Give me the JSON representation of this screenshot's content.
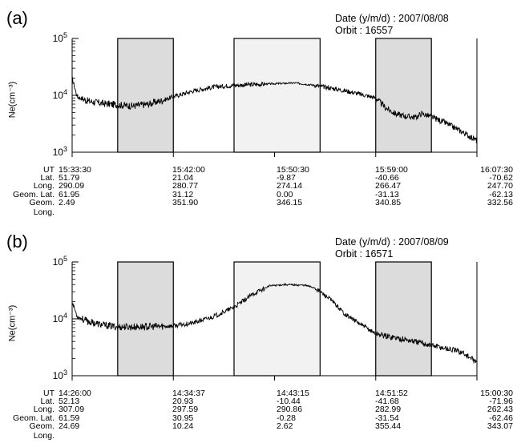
{
  "chart_data": [
    {
      "type": "line",
      "panel_label": "(a)",
      "date_label": "Date (y/m/d) : 2007/08/08",
      "orbit_label": "Orbit : 16557",
      "ylabel": "Ne(cm⁻³)",
      "yscale": "log",
      "ylim": [
        1000,
        100000
      ],
      "yticks": [
        {
          "base": "10",
          "exp": "3"
        },
        {
          "base": "10",
          "exp": "4"
        },
        {
          "base": "10",
          "exp": "5"
        }
      ],
      "x_ticks": [
        "15:33:30",
        "15:42:00",
        "15:50:30",
        "15:59:00",
        "16:07:30"
      ],
      "xlim": [
        0,
        4
      ],
      "shaded_regions": [
        {
          "x0": 0.45,
          "x1": 1.0,
          "shade": "#dcdcdc"
        },
        {
          "x0": 1.6,
          "x1": 2.45,
          "shade": "#f2f2f2"
        },
        {
          "x0": 3.0,
          "x1": 3.55,
          "shade": "#dcdcdc"
        }
      ],
      "series": [
        {
          "values": [
            [
              0.0,
              20000
            ],
            [
              0.05,
              9500
            ],
            [
              0.15,
              8000
            ],
            [
              0.3,
              7200
            ],
            [
              0.45,
              6800
            ],
            [
              0.6,
              6500
            ],
            [
              0.75,
              7000
            ],
            [
              0.9,
              8200
            ],
            [
              1.0,
              9500
            ],
            [
              1.2,
              12000
            ],
            [
              1.4,
              14000
            ],
            [
              1.6,
              15000
            ],
            [
              1.8,
              15500
            ],
            [
              2.0,
              16000
            ],
            [
              2.2,
              16500
            ],
            [
              2.4,
              15000
            ],
            [
              2.6,
              13000
            ],
            [
              2.8,
              11000
            ],
            [
              3.0,
              9000
            ],
            [
              3.1,
              6000
            ],
            [
              3.2,
              4700
            ],
            [
              3.3,
              4300
            ],
            [
              3.4,
              4100
            ],
            [
              3.45,
              4800
            ],
            [
              3.55,
              4200
            ],
            [
              3.7,
              3200
            ],
            [
              3.85,
              2300
            ],
            [
              4.0,
              1600
            ]
          ]
        }
      ],
      "info_rows": [
        {
          "label": "UT",
          "values": [
            "15:33:30",
            "15:42:00",
            "15:50:30",
            "15:59:00",
            "16:07:30"
          ]
        },
        {
          "label": "Lat.",
          "values": [
            "51.79",
            "21.04",
            "-9.87",
            "-40.66",
            "-70.62"
          ]
        },
        {
          "label": "Long.",
          "values": [
            "290.09",
            "280.77",
            "274.14",
            "266.47",
            "247.70"
          ]
        },
        {
          "label": "Geom. Lat.",
          "values": [
            "61.95",
            "31.12",
            "0.00",
            "-31.13",
            "-62.13"
          ]
        },
        {
          "label": "Geom. Long.",
          "values": [
            "2.49",
            "351.90",
            "346.15",
            "340.85",
            "332.56"
          ]
        }
      ]
    },
    {
      "type": "line",
      "panel_label": "(b)",
      "date_label": "Date (y/m/d) : 2007/08/09",
      "orbit_label": "Orbit : 16571",
      "ylabel": "Ne(cm⁻³)",
      "yscale": "log",
      "ylim": [
        1000,
        100000
      ],
      "yticks": [
        {
          "base": "10",
          "exp": "3"
        },
        {
          "base": "10",
          "exp": "4"
        },
        {
          "base": "10",
          "exp": "5"
        }
      ],
      "x_ticks": [
        "14:26:00",
        "14:34:37",
        "14:43:15",
        "14:51:52",
        "15:00:30"
      ],
      "xlim": [
        0,
        4
      ],
      "shaded_regions": [
        {
          "x0": 0.45,
          "x1": 1.0,
          "shade": "#dcdcdc"
        },
        {
          "x0": 1.6,
          "x1": 2.45,
          "shade": "#f2f2f2"
        },
        {
          "x0": 3.0,
          "x1": 3.55,
          "shade": "#dcdcdc"
        }
      ],
      "series": [
        {
          "values": [
            [
              0.0,
              20000
            ],
            [
              0.05,
              11000
            ],
            [
              0.15,
              9000
            ],
            [
              0.3,
              7800
            ],
            [
              0.45,
              7200
            ],
            [
              0.6,
              7200
            ],
            [
              0.8,
              7300
            ],
            [
              1.0,
              7500
            ],
            [
              1.2,
              8500
            ],
            [
              1.4,
              11000
            ],
            [
              1.6,
              16000
            ],
            [
              1.8,
              28000
            ],
            [
              1.95,
              38000
            ],
            [
              2.1,
              40000
            ],
            [
              2.3,
              39000
            ],
            [
              2.4,
              35000
            ],
            [
              2.55,
              22000
            ],
            [
              2.7,
              12000
            ],
            [
              2.85,
              8000
            ],
            [
              3.0,
              5500
            ],
            [
              3.1,
              5000
            ],
            [
              3.3,
              4300
            ],
            [
              3.5,
              3600
            ],
            [
              3.7,
              3000
            ],
            [
              3.85,
              2600
            ],
            [
              4.0,
              1700
            ]
          ]
        }
      ],
      "info_rows": [
        {
          "label": "UT",
          "values": [
            "14:26:00",
            "14:34:37",
            "14:43:15",
            "14:51:52",
            "15:00:30"
          ]
        },
        {
          "label": "Lat.",
          "values": [
            "52.13",
            "20.93",
            "-10.44",
            "-41.68",
            "-71.96"
          ]
        },
        {
          "label": "Long.",
          "values": [
            "307.09",
            "297.59",
            "290.86",
            "282.99",
            "262.43"
          ]
        },
        {
          "label": "Geom. Lat.",
          "values": [
            "61.59",
            "30.95",
            "-0.28",
            "-31.54",
            "-62.46"
          ]
        },
        {
          "label": "Geom. Long.",
          "values": [
            "24.69",
            "10.24",
            "2.62",
            "355.44",
            "343.07"
          ]
        }
      ]
    }
  ]
}
